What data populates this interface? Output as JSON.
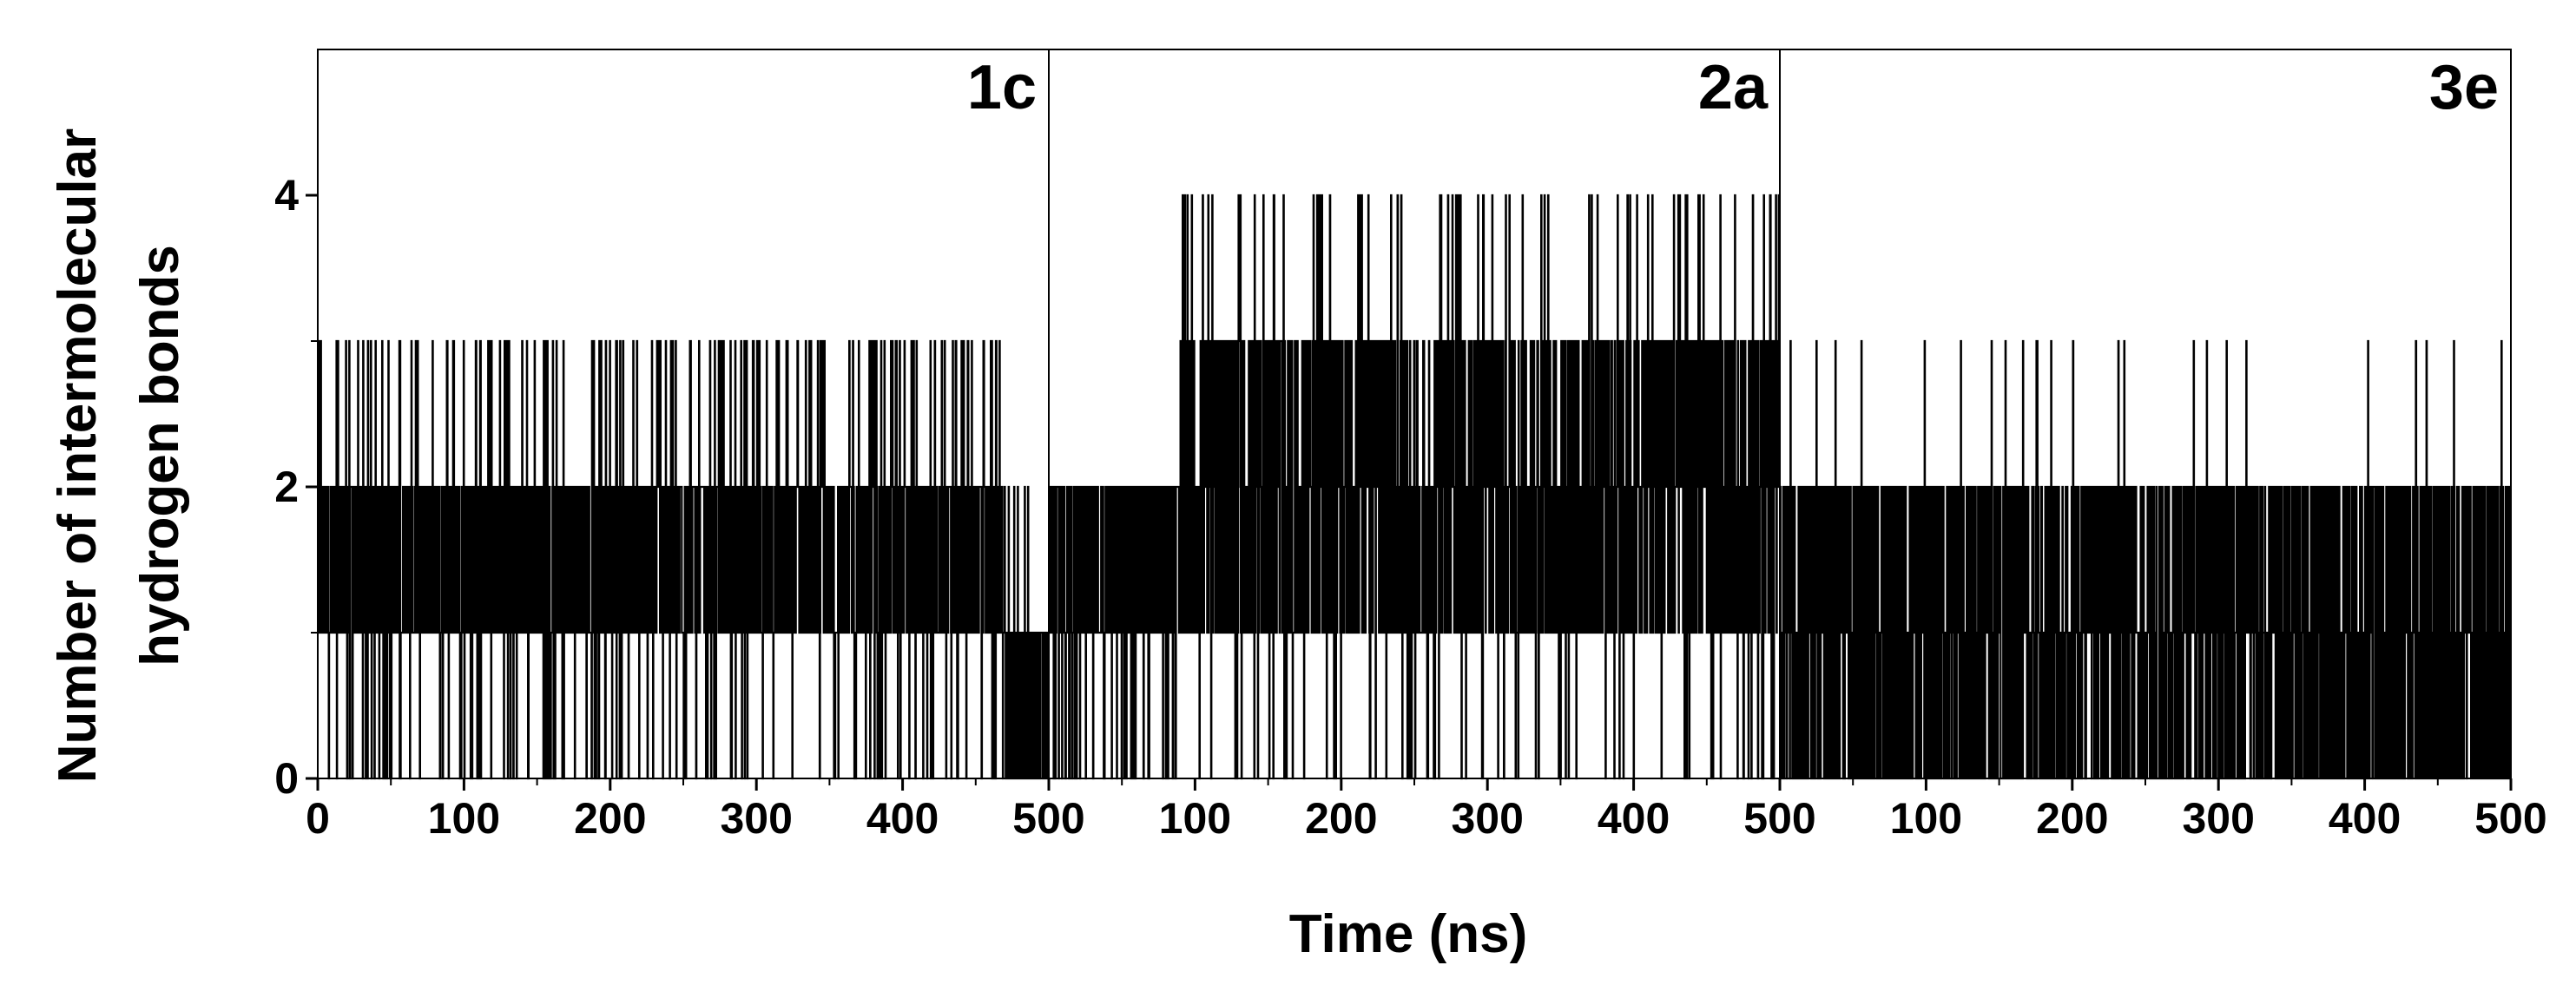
{
  "chart_data": {
    "type": "line",
    "style": "step",
    "xlabel": "Time (ns)",
    "ylabel_lines": [
      "Number of intermolecular",
      "hydrogen bonds"
    ],
    "ylim": [
      0,
      5
    ],
    "y_ticks": [
      0,
      2,
      4
    ],
    "x_ticks": [
      0,
      100,
      200,
      300,
      400,
      500
    ],
    "grid": false,
    "panels": [
      {
        "label": "1c",
        "xlim": [
          0,
          500
        ],
        "segments": [
          {
            "t0": 0,
            "t1": 470,
            "base_min": 1,
            "base_max": 2,
            "spike_min": 0,
            "spike_max": 3,
            "spike_rate": 0.28
          },
          {
            "t0": 470,
            "t1": 500,
            "base_min": 0,
            "base_max": 1,
            "spike_min": 0,
            "spike_max": 2,
            "spike_rate": 0.1
          }
        ]
      },
      {
        "label": "2a",
        "xlim": [
          0,
          500
        ],
        "segments": [
          {
            "t0": 0,
            "t1": 90,
            "base_min": 1,
            "base_max": 2,
            "spike_min": 0,
            "spike_max": 2,
            "spike_rate": 0.25
          },
          {
            "t0": 90,
            "t1": 245,
            "base_min": 1,
            "base_max": 3,
            "spike_min": 0,
            "spike_max": 4,
            "spike_rate": 0.22
          },
          {
            "t0": 245,
            "t1": 265,
            "base_min": 1,
            "base_max": 2,
            "spike_min": 0,
            "spike_max": 3,
            "spike_rate": 0.2
          },
          {
            "t0": 265,
            "t1": 500,
            "base_min": 1,
            "base_max": 3,
            "spike_min": 0,
            "spike_max": 4,
            "spike_rate": 0.22
          }
        ]
      },
      {
        "label": "3e",
        "xlim": [
          0,
          500
        ],
        "segments": [
          {
            "t0": 0,
            "t1": 415,
            "base_min": 0,
            "base_max": 2,
            "spike_min": 0,
            "spike_max": 3,
            "spike_rate": 0.04
          },
          {
            "t0": 415,
            "t1": 500,
            "base_min": 0,
            "base_max": 2,
            "spike_min": 0,
            "spike_max": 3,
            "spike_rate": 0.06
          }
        ]
      }
    ]
  }
}
